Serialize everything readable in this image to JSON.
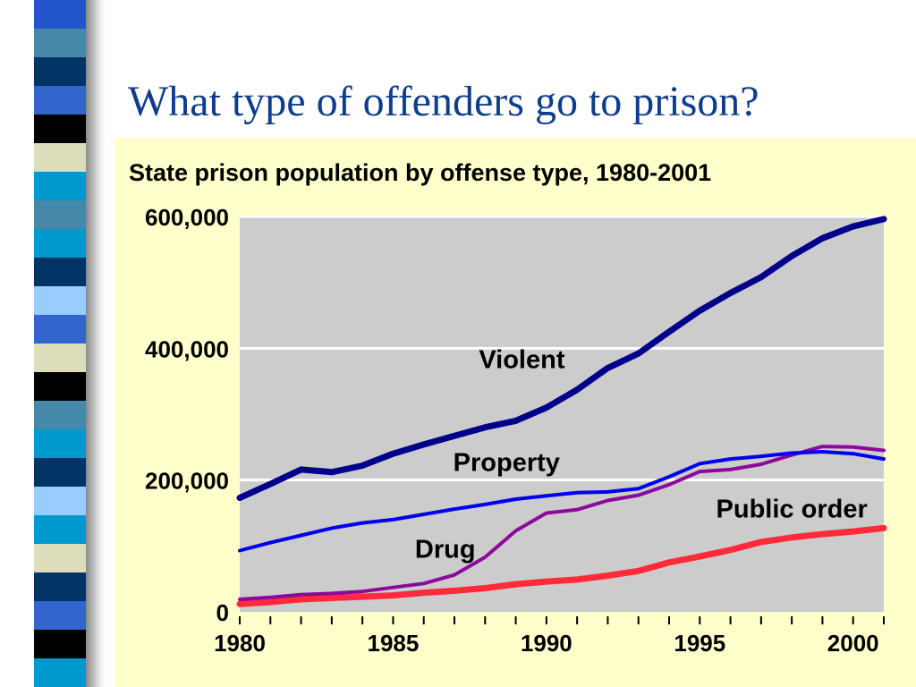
{
  "slide": {
    "title": "What type of offenders go to prison?"
  },
  "colors": {
    "title": "#0d3d8c",
    "panel_background": "#ffffcc",
    "plot_background": "#cccccc",
    "gridline": "#ffffff",
    "violent": "#00008b",
    "property": "#0000ee",
    "drug": "#8b0a9b",
    "public_order": "#ff2a3a"
  },
  "stripe": {
    "colors": [
      "#2255cc",
      "#4488aa",
      "#003366",
      "#3366cc",
      "#000000",
      "#ddddbb",
      "#0099cc",
      "#4488aa",
      "#0099cc",
      "#003366",
      "#99ccff",
      "#3366cc",
      "#ddddbb",
      "#000000",
      "#4488aa",
      "#0099cc",
      "#003366",
      "#99ccff",
      "#0099cc",
      "#ddddbb",
      "#003366",
      "#3366cc",
      "#000000",
      "#0099cc"
    ]
  },
  "chart_data": {
    "type": "line",
    "title": "State prison population by offense type, 1980-2001",
    "xlabel": "",
    "ylabel": "",
    "xlim": [
      1980,
      2001
    ],
    "ylim": [
      0,
      600000
    ],
    "y_ticks": [
      0,
      200000,
      400000,
      600000
    ],
    "y_tick_labels": [
      "0",
      "200,000",
      "400,000",
      "600,000"
    ],
    "x_tick_labels": [
      {
        "year": 1980,
        "label": "1980"
      },
      {
        "year": 1985,
        "label": "1985"
      },
      {
        "year": 1990,
        "label": "1990"
      },
      {
        "year": 1995,
        "label": "1995"
      },
      {
        "year": 2000,
        "label": "2000"
      }
    ],
    "grid": "horizontal",
    "x": [
      1980,
      1981,
      1982,
      1983,
      1984,
      1985,
      1986,
      1987,
      1988,
      1989,
      1990,
      1991,
      1992,
      1993,
      1994,
      1995,
      1996,
      1997,
      1998,
      1999,
      2000,
      2001
    ],
    "series": [
      {
        "name": "Violent",
        "color_key": "violent",
        "width": 7,
        "values": [
          173000,
          194000,
          216000,
          212000,
          222000,
          240000,
          254000,
          267000,
          280000,
          290000,
          310000,
          337000,
          370000,
          392000,
          425000,
          457000,
          484000,
          508000,
          540000,
          567000,
          585000,
          596000
        ]
      },
      {
        "name": "Property",
        "color_key": "property",
        "width": 4,
        "values": [
          93000,
          105000,
          116000,
          127000,
          135000,
          140000,
          148000,
          156000,
          163000,
          171000,
          176000,
          181000,
          182000,
          187000,
          205000,
          225000,
          232000,
          236000,
          241000,
          243000,
          240000,
          232000
        ]
      },
      {
        "name": "Drug",
        "color_key": "drug",
        "width": 4,
        "values": [
          19000,
          22000,
          26000,
          28000,
          31000,
          37000,
          43000,
          56000,
          83000,
          123000,
          150000,
          155000,
          169000,
          177000,
          193000,
          213000,
          216000,
          224000,
          238000,
          251000,
          250000,
          245000
        ]
      },
      {
        "name": "Public order",
        "color_key": "public_order",
        "width": 7,
        "values": [
          12000,
          15000,
          19000,
          21000,
          23000,
          25000,
          29000,
          32000,
          36000,
          42000,
          46000,
          49000,
          55000,
          62000,
          75000,
          84000,
          94000,
          106000,
          113000,
          118000,
          122000,
          127000
        ]
      }
    ],
    "series_labels": [
      {
        "series": "Violent",
        "year": 1989.2,
        "value": 370000,
        "text": "Violent"
      },
      {
        "series": "Property",
        "year": 1988.7,
        "value": 214000,
        "text": "Property"
      },
      {
        "series": "Public order",
        "year": 1998.0,
        "value": 143000,
        "text": "Public order"
      },
      {
        "series": "Drug",
        "year": 1986.7,
        "value": 82000,
        "text": "Drug"
      }
    ]
  }
}
